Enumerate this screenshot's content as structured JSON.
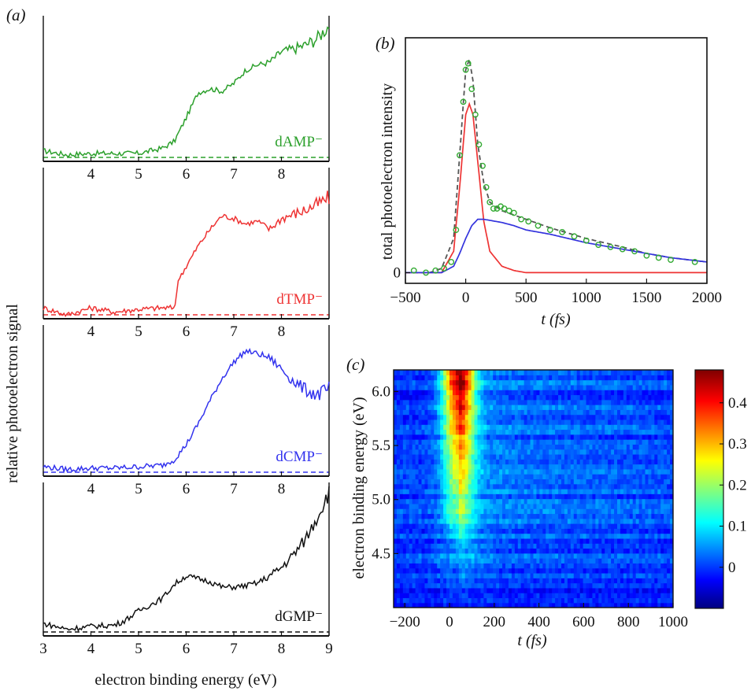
{
  "panel_labels": {
    "a": "(a)",
    "b": "(b)",
    "c": "(c)"
  },
  "chart_data": [
    {
      "panel": "a",
      "type": "line",
      "xlabel": "electron binding energy (eV)",
      "ylabel": "relative photoelectron signal",
      "xlim": [
        3,
        9
      ],
      "xticks": [
        "3",
        "4",
        "5",
        "6",
        "7",
        "8",
        "9"
      ],
      "series": [
        {
          "name": "dAMP⁻",
          "color": "#2ca02c",
          "x": [
            3.0,
            3.5,
            4.0,
            4.5,
            5.0,
            5.5,
            5.75,
            6.0,
            6.25,
            6.5,
            6.75,
            7.0,
            7.25,
            7.5,
            7.75,
            8.0,
            8.25,
            8.5,
            8.75,
            9.0
          ],
          "y": [
            0.05,
            0.02,
            0.03,
            0.03,
            0.03,
            0.07,
            0.12,
            0.3,
            0.49,
            0.52,
            0.5,
            0.56,
            0.66,
            0.7,
            0.72,
            0.8,
            0.82,
            0.85,
            0.9,
            1.0
          ]
        },
        {
          "name": "dTMP⁻",
          "color": "#ee3333",
          "x": [
            3.0,
            3.5,
            4.0,
            4.5,
            5.0,
            5.5,
            5.75,
            5.85,
            6.0,
            6.25,
            6.5,
            6.75,
            7.0,
            7.25,
            7.5,
            7.75,
            8.0,
            8.25,
            8.5,
            8.75,
            9.0
          ],
          "y": [
            0.05,
            0.0,
            0.05,
            0.02,
            0.04,
            0.05,
            0.05,
            0.27,
            0.35,
            0.5,
            0.62,
            0.72,
            0.7,
            0.66,
            0.68,
            0.62,
            0.7,
            0.73,
            0.76,
            0.8,
            0.85
          ]
        },
        {
          "name": "dCMP⁻",
          "color": "#3333ee",
          "x": [
            3.0,
            3.5,
            4.0,
            4.5,
            5.0,
            5.5,
            5.75,
            6.0,
            6.25,
            6.5,
            6.75,
            7.0,
            7.25,
            7.5,
            7.75,
            8.0,
            8.25,
            8.5,
            8.75,
            9.0
          ],
          "y": [
            0.04,
            0.02,
            0.03,
            0.03,
            0.04,
            0.05,
            0.09,
            0.2,
            0.35,
            0.52,
            0.68,
            0.8,
            0.88,
            0.86,
            0.83,
            0.75,
            0.66,
            0.6,
            0.56,
            0.6
          ]
        },
        {
          "name": "dGMP⁻",
          "color": "#111111",
          "x": [
            3.0,
            3.5,
            4.0,
            4.5,
            4.7,
            5.0,
            5.5,
            5.75,
            6.0,
            6.25,
            6.5,
            6.75,
            7.0,
            7.25,
            7.5,
            7.75,
            8.0,
            8.25,
            8.5,
            8.75,
            9.0
          ],
          "y": [
            0.06,
            0.02,
            0.04,
            0.05,
            0.08,
            0.15,
            0.24,
            0.34,
            0.4,
            0.38,
            0.36,
            0.32,
            0.32,
            0.33,
            0.35,
            0.4,
            0.46,
            0.55,
            0.66,
            0.82,
            1.0
          ]
        }
      ]
    },
    {
      "panel": "b",
      "type": "line",
      "xlabel": "t (fs)",
      "ylabel": "total photoelectron intensity",
      "xlim": [
        -500,
        2000
      ],
      "ylim": [
        -0.05,
        1.1
      ],
      "xticks": [
        "−500",
        "0",
        "500",
        "1000",
        "1500",
        "2000"
      ],
      "yticks": [
        "0"
      ],
      "series": [
        {
          "color": "#555555",
          "style": "dashed",
          "x": [
            -500,
            -300,
            -200,
            -100,
            -50,
            0,
            30,
            60,
            100,
            150,
            200,
            300,
            400,
            500,
            700,
            1000,
            1300,
            1500,
            1700,
            2000
          ],
          "y": [
            0.0,
            0.0,
            0.02,
            0.16,
            0.55,
            0.95,
            1.0,
            0.9,
            0.6,
            0.42,
            0.33,
            0.29,
            0.27,
            0.25,
            0.21,
            0.16,
            0.12,
            0.09,
            0.07,
            0.05
          ]
        },
        {
          "color": "#ee3333",
          "style": "solid",
          "x": [
            -500,
            -200,
            -100,
            -50,
            0,
            30,
            60,
            100,
            150,
            200,
            300,
            400,
            500,
            700,
            2000
          ],
          "y": [
            0.0,
            0.0,
            0.1,
            0.4,
            0.74,
            0.79,
            0.74,
            0.52,
            0.24,
            0.1,
            0.03,
            0.01,
            0.0,
            0.0,
            0.0
          ]
        },
        {
          "color": "#3333dd",
          "style": "solid",
          "x": [
            -500,
            -200,
            -100,
            -50,
            0,
            50,
            100,
            150,
            200,
            300,
            400,
            500,
            700,
            1000,
            1300,
            1500,
            1700,
            2000
          ],
          "y": [
            0.0,
            0.0,
            0.03,
            0.09,
            0.16,
            0.22,
            0.25,
            0.25,
            0.245,
            0.235,
            0.22,
            0.2,
            0.18,
            0.14,
            0.11,
            0.09,
            0.07,
            0.05
          ]
        }
      ],
      "points": {
        "color": "#33aa33",
        "x": [
          -430,
          -330,
          -250,
          -180,
          -120,
          -80,
          -50,
          -20,
          0,
          20,
          50,
          80,
          110,
          140,
          170,
          200,
          230,
          260,
          290,
          320,
          360,
          400,
          460,
          520,
          600,
          700,
          800,
          900,
          1000,
          1100,
          1200,
          1300,
          1400,
          1500,
          1600,
          1700,
          1900
        ],
        "y": [
          0.01,
          0.0,
          0.01,
          0.02,
          0.05,
          0.2,
          0.55,
          0.8,
          0.95,
          0.98,
          0.86,
          0.74,
          0.6,
          0.5,
          0.4,
          0.33,
          0.3,
          0.3,
          0.31,
          0.3,
          0.29,
          0.28,
          0.25,
          0.24,
          0.22,
          0.2,
          0.19,
          0.17,
          0.15,
          0.13,
          0.12,
          0.11,
          0.1,
          0.08,
          0.07,
          0.06,
          0.05
        ]
      }
    },
    {
      "panel": "c",
      "type": "heatmap",
      "xlabel": "t (fs)",
      "ylabel": "electron binding energy (eV)",
      "xlim": [
        -250,
        1000
      ],
      "ylim": [
        4.0,
        6.2
      ],
      "xticks": [
        "−200",
        "0",
        "200",
        "400",
        "600",
        "800",
        "1000"
      ],
      "yticks": [
        "4.5",
        "5.0",
        "5.5",
        "6.0"
      ],
      "colorbar_ticks": [
        "0",
        "0.1",
        "0.2",
        "0.3",
        "0.4"
      ],
      "colorbar_range": [
        -0.1,
        0.48
      ],
      "peak_t": 40,
      "values_by_energy": {
        "E": [
          4.0,
          4.3,
          4.6,
          4.7,
          4.9,
          5.1,
          5.3,
          5.5,
          5.7,
          5.9,
          6.0,
          6.2
        ],
        "amp": [
          0.0,
          0.03,
          0.06,
          0.12,
          0.16,
          0.2,
          0.24,
          0.29,
          0.33,
          0.38,
          0.42,
          0.44
        ]
      }
    }
  ]
}
